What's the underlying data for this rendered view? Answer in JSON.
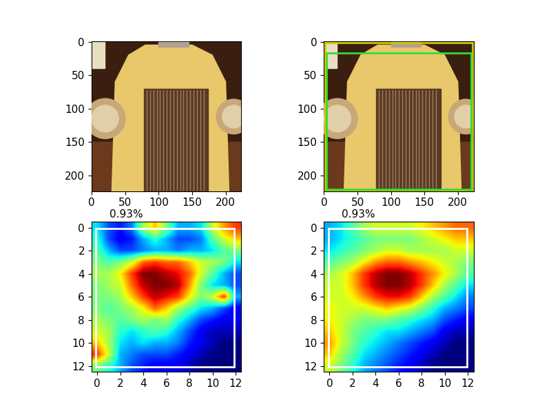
{
  "chart_data": [
    {
      "type": "image",
      "xlim": [
        -0.5,
        223.5
      ],
      "ylim": [
        223.5,
        -0.5
      ],
      "xticks": [
        0,
        50,
        100,
        150,
        200
      ],
      "yticks": [
        0,
        50,
        100,
        150,
        200
      ]
    },
    {
      "type": "image",
      "xlim": [
        -0.5,
        223.5
      ],
      "ylim": [
        223.5,
        -0.5
      ],
      "xticks": [
        0,
        50,
        100,
        150,
        200
      ],
      "yticks": [
        0,
        50,
        100,
        150,
        200
      ],
      "boxes": [
        {
          "xmin": 2,
          "ymin": 1,
          "xmax": 222,
          "ymax": 222,
          "color": "#d4c400"
        },
        {
          "xmin": 4,
          "ymin": 17,
          "xmax": 220,
          "ymax": 221,
          "color": "#33dd33"
        }
      ]
    },
    {
      "type": "heatmap",
      "title": "0.93%",
      "xlim": [
        -0.5,
        12.5
      ],
      "ylim": [
        12.5,
        -0.5
      ],
      "xticks": [
        0,
        2,
        4,
        6,
        8,
        10,
        12
      ],
      "yticks": [
        0,
        2,
        4,
        6,
        8,
        10,
        12
      ],
      "color_range": [
        0,
        1
      ],
      "boxes": [
        {
          "xmin": -0.1,
          "ymin": 0.1,
          "xmax": 11.9,
          "ymax": 12.1,
          "color": "#ffffff"
        }
      ],
      "cells": [
        [
          0.35,
          0.2,
          0.15,
          0.25,
          0.55,
          0.7,
          0.5,
          0.3,
          0.3,
          0.35,
          0.6,
          0.75,
          0.85
        ],
        [
          0.4,
          0.2,
          0.1,
          0.15,
          0.3,
          0.4,
          0.3,
          0.2,
          0.2,
          0.25,
          0.45,
          0.6,
          0.7
        ],
        [
          0.45,
          0.3,
          0.2,
          0.2,
          0.25,
          0.3,
          0.3,
          0.25,
          0.3,
          0.3,
          0.35,
          0.45,
          0.5
        ],
        [
          0.5,
          0.45,
          0.5,
          0.6,
          0.8,
          0.85,
          0.8,
          0.8,
          0.7,
          0.6,
          0.55,
          0.5,
          0.35
        ],
        [
          0.55,
          0.55,
          0.65,
          0.85,
          1.0,
          1.0,
          0.95,
          0.9,
          0.8,
          0.6,
          0.45,
          0.3,
          0.2
        ],
        [
          0.5,
          0.55,
          0.6,
          0.8,
          0.95,
          1.0,
          1.0,
          0.95,
          0.75,
          0.5,
          0.35,
          0.3,
          0.2
        ],
        [
          0.5,
          0.5,
          0.55,
          0.7,
          0.85,
          0.95,
          0.9,
          0.85,
          0.65,
          0.5,
          0.6,
          0.85,
          0.3
        ],
        [
          0.5,
          0.45,
          0.5,
          0.55,
          0.65,
          0.8,
          0.7,
          0.55,
          0.45,
          0.35,
          0.3,
          0.2,
          0.1
        ],
        [
          0.55,
          0.5,
          0.45,
          0.5,
          0.55,
          0.5,
          0.55,
          0.4,
          0.3,
          0.2,
          0.15,
          0.1,
          0.1
        ],
        [
          0.6,
          0.55,
          0.4,
          0.35,
          0.4,
          0.45,
          0.4,
          0.3,
          0.2,
          0.1,
          0.05,
          0.05,
          0.05
        ],
        [
          0.7,
          0.55,
          0.35,
          0.3,
          0.35,
          0.3,
          0.3,
          0.25,
          0.15,
          0.1,
          0.05,
          0.0,
          0.0
        ],
        [
          0.85,
          0.6,
          0.3,
          0.25,
          0.2,
          0.2,
          0.2,
          0.15,
          0.1,
          0.05,
          0.0,
          0.0,
          0.0
        ],
        [
          0.5,
          0.4,
          0.3,
          0.2,
          0.15,
          0.1,
          0.1,
          0.1,
          0.05,
          0.0,
          0.0,
          0.0,
          0.0
        ]
      ]
    },
    {
      "type": "heatmap",
      "title": "0.93%",
      "xlim": [
        -0.5,
        12.5
      ],
      "ylim": [
        12.5,
        -0.5
      ],
      "xticks": [
        0,
        2,
        4,
        6,
        8,
        10,
        12
      ],
      "yticks": [
        0,
        2,
        4,
        6,
        8,
        10,
        12
      ],
      "color_range": [
        0,
        1
      ],
      "boxes": [
        {
          "xmin": -0.1,
          "ymin": 0.1,
          "xmax": 11.9,
          "ymax": 12.1,
          "color": "#ffffff"
        }
      ],
      "cells": [
        [
          0.3,
          0.35,
          0.45,
          0.55,
          0.6,
          0.6,
          0.6,
          0.6,
          0.65,
          0.7,
          0.75,
          0.8,
          0.8
        ],
        [
          0.3,
          0.35,
          0.4,
          0.45,
          0.5,
          0.5,
          0.5,
          0.5,
          0.55,
          0.6,
          0.65,
          0.7,
          0.7
        ],
        [
          0.35,
          0.4,
          0.45,
          0.5,
          0.55,
          0.6,
          0.6,
          0.55,
          0.55,
          0.55,
          0.55,
          0.6,
          0.6
        ],
        [
          0.45,
          0.5,
          0.55,
          0.65,
          0.75,
          0.8,
          0.8,
          0.75,
          0.7,
          0.65,
          0.6,
          0.55,
          0.5
        ],
        [
          0.55,
          0.6,
          0.7,
          0.85,
          0.95,
          1.0,
          1.0,
          0.95,
          0.85,
          0.75,
          0.65,
          0.55,
          0.45
        ],
        [
          0.6,
          0.6,
          0.7,
          0.85,
          0.95,
          1.0,
          1.0,
          0.95,
          0.85,
          0.7,
          0.55,
          0.45,
          0.35
        ],
        [
          0.6,
          0.6,
          0.65,
          0.75,
          0.85,
          0.9,
          0.9,
          0.85,
          0.7,
          0.55,
          0.45,
          0.35,
          0.25
        ],
        [
          0.65,
          0.6,
          0.6,
          0.6,
          0.65,
          0.7,
          0.65,
          0.6,
          0.5,
          0.4,
          0.3,
          0.25,
          0.2
        ],
        [
          0.65,
          0.6,
          0.55,
          0.5,
          0.5,
          0.5,
          0.45,
          0.4,
          0.35,
          0.3,
          0.2,
          0.15,
          0.1
        ],
        [
          0.7,
          0.6,
          0.5,
          0.45,
          0.4,
          0.35,
          0.35,
          0.3,
          0.25,
          0.2,
          0.1,
          0.05,
          0.05
        ],
        [
          0.75,
          0.6,
          0.5,
          0.4,
          0.35,
          0.3,
          0.25,
          0.2,
          0.15,
          0.1,
          0.05,
          0.0,
          0.0
        ],
        [
          0.7,
          0.55,
          0.45,
          0.35,
          0.3,
          0.25,
          0.2,
          0.15,
          0.1,
          0.05,
          0.0,
          0.0,
          0.0
        ],
        [
          0.6,
          0.5,
          0.4,
          0.3,
          0.25,
          0.2,
          0.15,
          0.1,
          0.05,
          0.0,
          0.0,
          0.0,
          0.0
        ]
      ]
    }
  ]
}
